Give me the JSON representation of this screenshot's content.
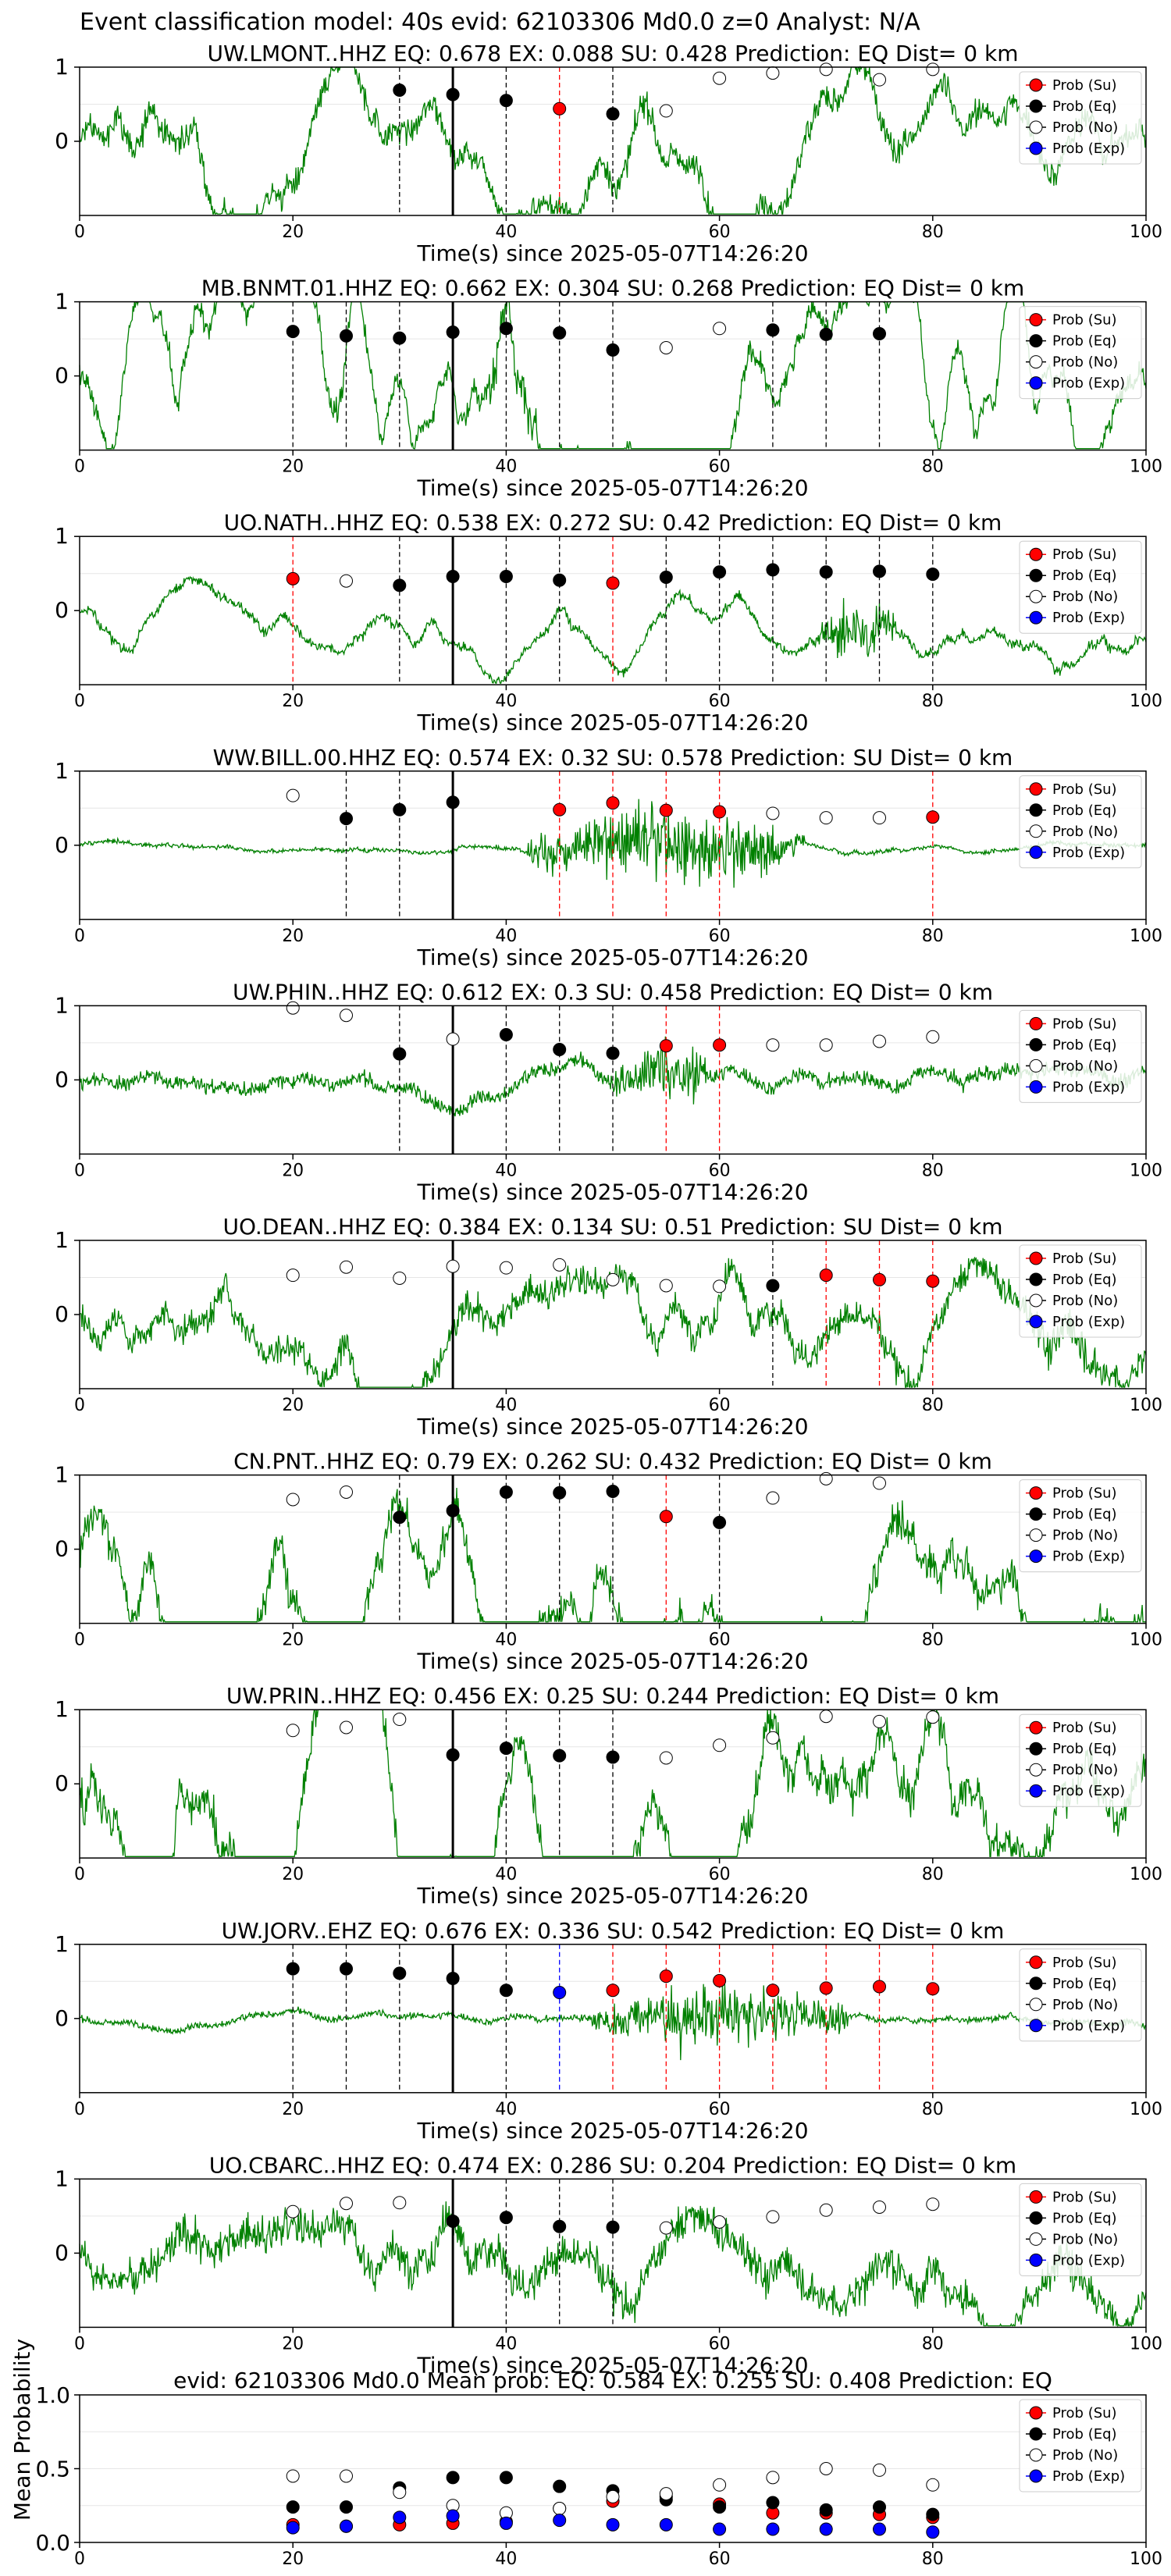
{
  "figure": {
    "title": "Event classification model: 40s evid: 62103306 Md0.0 z=0 Analyst: N/A"
  },
  "legend_entries": [
    {
      "label": "Prob (Su)",
      "color": "#ff0000"
    },
    {
      "label": "Prob (Eq)",
      "color": "#000000"
    },
    {
      "label": "Prob (No)",
      "color": "#ffffff"
    },
    {
      "label": "Prob (Exp)",
      "color": "#0000ff"
    }
  ],
  "colors": {
    "waveform": "#008000",
    "su": "#ff0000",
    "eq": "#000000",
    "no": "#ffffff",
    "exp": "#0000ff"
  },
  "chart_data": [
    {
      "type": "line",
      "title": "UW.LMONT..HHZ   EQ: 0.678  EX: 0.088  SU: 0.428   Prediction: EQ    Dist= 0 km",
      "xlabel": "Time(s) since 2025-05-07T14:26:20",
      "xlim": [
        0,
        100
      ],
      "ylim": [
        -1,
        1
      ],
      "xticks": [
        "0",
        "20",
        "40",
        "60",
        "80",
        "100"
      ],
      "yticks": [
        "0",
        "1"
      ],
      "arrival_line": 35,
      "waveform": {
        "amp": 0.32,
        "burst": null,
        "lowfreq": 0.2
      },
      "markers": [
        {
          "x": 30,
          "y": 0.69,
          "class": "eq"
        },
        {
          "x": 35,
          "y": 0.63,
          "class": "eq"
        },
        {
          "x": 40,
          "y": 0.55,
          "class": "eq"
        },
        {
          "x": 45,
          "y": 0.44,
          "class": "su"
        },
        {
          "x": 50,
          "y": 0.37,
          "class": "eq"
        },
        {
          "x": 55,
          "y": 0.41,
          "class": "no"
        },
        {
          "x": 60,
          "y": 0.85,
          "class": "no"
        },
        {
          "x": 65,
          "y": 0.92,
          "class": "no"
        },
        {
          "x": 70,
          "y": 0.97,
          "class": "no"
        },
        {
          "x": 75,
          "y": 0.83,
          "class": "no"
        },
        {
          "x": 80,
          "y": 0.97,
          "class": "no"
        }
      ]
    },
    {
      "type": "line",
      "title": "MB.BNMT.01.HHZ   EQ: 0.662  EX: 0.304  SU: 0.268   Prediction: EQ    Dist= 0 km",
      "xlabel": "Time(s) since 2025-05-07T14:26:20",
      "xlim": [
        0,
        100
      ],
      "ylim": [
        -1,
        1
      ],
      "xticks": [
        "0",
        "20",
        "40",
        "60",
        "80",
        "100"
      ],
      "yticks": [
        "0",
        "1"
      ],
      "arrival_line": 35,
      "waveform": {
        "amp": 0.25,
        "burst": [
          37,
          46,
          0.65
        ],
        "lowfreq": 0.5
      },
      "markers": [
        {
          "x": 20,
          "y": 0.6,
          "class": "eq"
        },
        {
          "x": 25,
          "y": 0.54,
          "class": "eq"
        },
        {
          "x": 30,
          "y": 0.51,
          "class": "eq"
        },
        {
          "x": 35,
          "y": 0.59,
          "class": "eq"
        },
        {
          "x": 40,
          "y": 0.64,
          "class": "eq"
        },
        {
          "x": 45,
          "y": 0.58,
          "class": "eq"
        },
        {
          "x": 50,
          "y": 0.35,
          "class": "eq"
        },
        {
          "x": 55,
          "y": 0.38,
          "class": "no"
        },
        {
          "x": 60,
          "y": 0.64,
          "class": "no"
        },
        {
          "x": 65,
          "y": 0.62,
          "class": "eq"
        },
        {
          "x": 70,
          "y": 0.56,
          "class": "eq"
        },
        {
          "x": 75,
          "y": 0.57,
          "class": "eq"
        }
      ]
    },
    {
      "type": "line",
      "title": "UO.NATH..HHZ   EQ: 0.538  EX: 0.272  SU: 0.42   Prediction: EQ    Dist= 0 km",
      "xlabel": "Time(s) since 2025-05-07T14:26:20",
      "xlim": [
        0,
        100
      ],
      "ylim": [
        -1,
        1
      ],
      "xticks": [
        "0",
        "20",
        "40",
        "60",
        "80",
        "100"
      ],
      "yticks": [
        "0",
        "1"
      ],
      "arrival_line": 35,
      "waveform": {
        "amp": 0.12,
        "burst": [
          69,
          77,
          0.7
        ],
        "lowfreq": 0.12
      },
      "markers": [
        {
          "x": 20,
          "y": 0.43,
          "class": "su"
        },
        {
          "x": 25,
          "y": 0.4,
          "class": "no"
        },
        {
          "x": 30,
          "y": 0.34,
          "class": "eq"
        },
        {
          "x": 35,
          "y": 0.46,
          "class": "eq"
        },
        {
          "x": 40,
          "y": 0.46,
          "class": "eq"
        },
        {
          "x": 45,
          "y": 0.41,
          "class": "eq"
        },
        {
          "x": 50,
          "y": 0.37,
          "class": "su"
        },
        {
          "x": 55,
          "y": 0.45,
          "class": "eq"
        },
        {
          "x": 60,
          "y": 0.52,
          "class": "eq"
        },
        {
          "x": 65,
          "y": 0.55,
          "class": "eq"
        },
        {
          "x": 70,
          "y": 0.52,
          "class": "eq"
        },
        {
          "x": 75,
          "y": 0.53,
          "class": "eq"
        },
        {
          "x": 80,
          "y": 0.49,
          "class": "eq"
        }
      ]
    },
    {
      "type": "line",
      "title": "WW.BILL.00.HHZ   EQ: 0.574  EX: 0.32  SU: 0.578   Prediction: SU    Dist= 0 km",
      "xlabel": "Time(s) since 2025-05-07T14:26:20",
      "xlim": [
        0,
        100
      ],
      "ylim": [
        -1,
        1
      ],
      "xticks": [
        "0",
        "20",
        "40",
        "60",
        "80",
        "100"
      ],
      "yticks": [
        "0",
        "1"
      ],
      "arrival_line": 35,
      "waveform": {
        "amp": 0.05,
        "burst": [
          42,
          68,
          0.85
        ],
        "lowfreq": 0.02
      },
      "markers": [
        {
          "x": 20,
          "y": 0.67,
          "class": "no"
        },
        {
          "x": 25,
          "y": 0.36,
          "class": "eq"
        },
        {
          "x": 30,
          "y": 0.48,
          "class": "eq"
        },
        {
          "x": 35,
          "y": 0.58,
          "class": "eq"
        },
        {
          "x": 45,
          "y": 0.48,
          "class": "su"
        },
        {
          "x": 50,
          "y": 0.57,
          "class": "su"
        },
        {
          "x": 55,
          "y": 0.47,
          "class": "su"
        },
        {
          "x": 60,
          "y": 0.45,
          "class": "su"
        },
        {
          "x": 65,
          "y": 0.43,
          "class": "no"
        },
        {
          "x": 70,
          "y": 0.37,
          "class": "no"
        },
        {
          "x": 75,
          "y": 0.37,
          "class": "no"
        },
        {
          "x": 80,
          "y": 0.38,
          "class": "su"
        }
      ]
    },
    {
      "type": "line",
      "title": "UW.PHIN..HHZ   EQ: 0.612  EX: 0.3  SU: 0.458   Prediction: EQ    Dist= 0 km",
      "xlabel": "Time(s) since 2025-05-07T14:26:20",
      "xlim": [
        0,
        100
      ],
      "ylim": [
        -1,
        1
      ],
      "xticks": [
        "0",
        "20",
        "40",
        "60",
        "80",
        "100"
      ],
      "yticks": [
        "0",
        "1"
      ],
      "arrival_line": 35,
      "waveform": {
        "amp": 0.18,
        "burst": [
          50,
          60,
          0.75
        ],
        "lowfreq": 0.05
      },
      "markers": [
        {
          "x": 20,
          "y": 0.97,
          "class": "no"
        },
        {
          "x": 25,
          "y": 0.87,
          "class": "no"
        },
        {
          "x": 30,
          "y": 0.35,
          "class": "eq"
        },
        {
          "x": 35,
          "y": 0.55,
          "class": "no"
        },
        {
          "x": 40,
          "y": 0.61,
          "class": "eq"
        },
        {
          "x": 45,
          "y": 0.41,
          "class": "eq"
        },
        {
          "x": 50,
          "y": 0.36,
          "class": "eq"
        },
        {
          "x": 55,
          "y": 0.46,
          "class": "su"
        },
        {
          "x": 60,
          "y": 0.47,
          "class": "su"
        },
        {
          "x": 65,
          "y": 0.47,
          "class": "no"
        },
        {
          "x": 70,
          "y": 0.47,
          "class": "no"
        },
        {
          "x": 75,
          "y": 0.52,
          "class": "no"
        },
        {
          "x": 80,
          "y": 0.58,
          "class": "no"
        }
      ]
    },
    {
      "type": "line",
      "title": "UO.DEAN..HHZ   EQ: 0.384  EX: 0.134  SU: 0.51   Prediction: SU    Dist= 0 km",
      "xlabel": "Time(s) since 2025-05-07T14:26:20",
      "xlim": [
        0,
        100
      ],
      "ylim": [
        -1,
        1
      ],
      "xticks": [
        "0",
        "20",
        "40",
        "60",
        "80",
        "100"
      ],
      "yticks": [
        "0",
        "1"
      ],
      "arrival_line": 35,
      "waveform": {
        "amp": 0.35,
        "burst": [
          86,
          100,
          0.5
        ],
        "lowfreq": 0.2
      },
      "markers": [
        {
          "x": 20,
          "y": 0.53,
          "class": "no"
        },
        {
          "x": 25,
          "y": 0.64,
          "class": "no"
        },
        {
          "x": 30,
          "y": 0.49,
          "class": "no"
        },
        {
          "x": 35,
          "y": 0.65,
          "class": "no"
        },
        {
          "x": 40,
          "y": 0.63,
          "class": "no"
        },
        {
          "x": 45,
          "y": 0.67,
          "class": "no"
        },
        {
          "x": 50,
          "y": 0.47,
          "class": "no"
        },
        {
          "x": 55,
          "y": 0.39,
          "class": "no"
        },
        {
          "x": 60,
          "y": 0.38,
          "class": "no"
        },
        {
          "x": 65,
          "y": 0.39,
          "class": "eq"
        },
        {
          "x": 70,
          "y": 0.53,
          "class": "su"
        },
        {
          "x": 75,
          "y": 0.47,
          "class": "su"
        },
        {
          "x": 80,
          "y": 0.45,
          "class": "su"
        }
      ]
    },
    {
      "type": "line",
      "title": "CN.PNT..HHZ   EQ: 0.79  EX: 0.262  SU: 0.432   Prediction: EQ    Dist= 0 km",
      "xlabel": "Time(s) since 2025-05-07T14:26:20",
      "xlim": [
        0,
        100
      ],
      "ylim": [
        -1,
        1
      ],
      "xticks": [
        "0",
        "20",
        "40",
        "60",
        "80",
        "100"
      ],
      "yticks": [
        "0",
        "1"
      ],
      "arrival_line": 35,
      "waveform": {
        "amp": 0.4,
        "burst": null,
        "lowfreq": 0.35
      },
      "markers": [
        {
          "x": 20,
          "y": 0.67,
          "class": "no"
        },
        {
          "x": 25,
          "y": 0.77,
          "class": "no"
        },
        {
          "x": 30,
          "y": 0.43,
          "class": "eq"
        },
        {
          "x": 35,
          "y": 0.52,
          "class": "eq"
        },
        {
          "x": 40,
          "y": 0.77,
          "class": "eq"
        },
        {
          "x": 45,
          "y": 0.76,
          "class": "eq"
        },
        {
          "x": 50,
          "y": 0.78,
          "class": "eq"
        },
        {
          "x": 55,
          "y": 0.44,
          "class": "su"
        },
        {
          "x": 60,
          "y": 0.36,
          "class": "eq"
        },
        {
          "x": 65,
          "y": 0.69,
          "class": "no"
        },
        {
          "x": 70,
          "y": 0.95,
          "class": "no"
        },
        {
          "x": 75,
          "y": 0.89,
          "class": "no"
        }
      ]
    },
    {
      "type": "line",
      "title": "UW.PRIN..HHZ   EQ: 0.456  EX: 0.25  SU: 0.244   Prediction: EQ    Dist= 0 km",
      "xlabel": "Time(s) since 2025-05-07T14:26:20",
      "xlim": [
        0,
        100
      ],
      "ylim": [
        -1,
        1
      ],
      "xticks": [
        "0",
        "20",
        "40",
        "60",
        "80",
        "100"
      ],
      "yticks": [
        "0",
        "1"
      ],
      "arrival_line": 35,
      "waveform": {
        "amp": 0.45,
        "burst": null,
        "lowfreq": 0.45
      },
      "markers": [
        {
          "x": 20,
          "y": 0.72,
          "class": "no"
        },
        {
          "x": 25,
          "y": 0.76,
          "class": "no"
        },
        {
          "x": 30,
          "y": 0.87,
          "class": "no"
        },
        {
          "x": 35,
          "y": 0.39,
          "class": "eq"
        },
        {
          "x": 40,
          "y": 0.48,
          "class": "eq"
        },
        {
          "x": 45,
          "y": 0.38,
          "class": "eq"
        },
        {
          "x": 50,
          "y": 0.36,
          "class": "eq"
        },
        {
          "x": 55,
          "y": 0.35,
          "class": "no"
        },
        {
          "x": 60,
          "y": 0.52,
          "class": "no"
        },
        {
          "x": 65,
          "y": 0.62,
          "class": "no"
        },
        {
          "x": 70,
          "y": 0.91,
          "class": "no"
        },
        {
          "x": 75,
          "y": 0.84,
          "class": "no"
        },
        {
          "x": 80,
          "y": 0.9,
          "class": "no"
        }
      ]
    },
    {
      "type": "line",
      "title": "UW.JORV..EHZ   EQ: 0.676  EX: 0.336  SU: 0.542   Prediction: EQ    Dist= 0 km",
      "xlabel": "Time(s) since 2025-05-07T14:26:20",
      "xlim": [
        0,
        100
      ],
      "ylim": [
        -1,
        1
      ],
      "xticks": [
        "0",
        "20",
        "40",
        "60",
        "80",
        "100"
      ],
      "yticks": [
        "0",
        "1"
      ],
      "arrival_line": 35,
      "waveform": {
        "amp": 0.08,
        "burst": [
          48,
          72,
          0.7
        ],
        "lowfreq": 0.02
      },
      "markers": [
        {
          "x": 20,
          "y": 0.67,
          "class": "eq"
        },
        {
          "x": 25,
          "y": 0.67,
          "class": "eq"
        },
        {
          "x": 30,
          "y": 0.61,
          "class": "eq"
        },
        {
          "x": 35,
          "y": 0.54,
          "class": "eq"
        },
        {
          "x": 40,
          "y": 0.38,
          "class": "eq"
        },
        {
          "x": 45,
          "y": 0.35,
          "class": "exp"
        },
        {
          "x": 50,
          "y": 0.38,
          "class": "su"
        },
        {
          "x": 55,
          "y": 0.57,
          "class": "su"
        },
        {
          "x": 60,
          "y": 0.51,
          "class": "su"
        },
        {
          "x": 65,
          "y": 0.38,
          "class": "su"
        },
        {
          "x": 70,
          "y": 0.41,
          "class": "su"
        },
        {
          "x": 75,
          "y": 0.43,
          "class": "su"
        },
        {
          "x": 80,
          "y": 0.4,
          "class": "su"
        }
      ]
    },
    {
      "type": "line",
      "title": "UO.CBARC..HHZ   EQ: 0.474  EX: 0.286  SU: 0.204   Prediction: EQ    Dist= 0 km",
      "xlabel": "Time(s) since 2025-05-07T14:26:20",
      "xlim": [
        0,
        100
      ],
      "ylim": [
        -1,
        1
      ],
      "xticks": [
        "0",
        "20",
        "40",
        "60",
        "80",
        "100"
      ],
      "yticks": [
        "0",
        "1"
      ],
      "arrival_line": 35,
      "waveform": {
        "amp": 0.45,
        "burst": null,
        "lowfreq": 0.15
      },
      "markers": [
        {
          "x": 20,
          "y": 0.56,
          "class": "no"
        },
        {
          "x": 25,
          "y": 0.67,
          "class": "no"
        },
        {
          "x": 30,
          "y": 0.68,
          "class": "no"
        },
        {
          "x": 35,
          "y": 0.43,
          "class": "eq"
        },
        {
          "x": 40,
          "y": 0.48,
          "class": "eq"
        },
        {
          "x": 45,
          "y": 0.36,
          "class": "eq"
        },
        {
          "x": 50,
          "y": 0.35,
          "class": "eq"
        },
        {
          "x": 55,
          "y": 0.34,
          "class": "no"
        },
        {
          "x": 60,
          "y": 0.42,
          "class": "no"
        },
        {
          "x": 65,
          "y": 0.49,
          "class": "no"
        },
        {
          "x": 70,
          "y": 0.58,
          "class": "no"
        },
        {
          "x": 75,
          "y": 0.62,
          "class": "no"
        },
        {
          "x": 80,
          "y": 0.66,
          "class": "no"
        }
      ]
    },
    {
      "type": "scatter",
      "title": "evid: 62103306  Md0.0   Mean prob:   EQ: 0.584  EX: 0.255  SU: 0.408   Prediction: EQ",
      "ylabel": "Mean Probability",
      "xlim": [
        0,
        100
      ],
      "ylim": [
        0,
        1
      ],
      "xticks": [
        "0",
        "20",
        "40",
        "60",
        "80",
        "100"
      ],
      "yticks": [
        "0.0",
        "0.5",
        "1.0"
      ],
      "x": [
        20,
        25,
        30,
        35,
        40,
        45,
        50,
        55,
        60,
        65,
        70,
        75,
        80
      ],
      "series": [
        {
          "name": "Prob (Su)",
          "class": "su",
          "values": [
            0.12,
            0.11,
            0.12,
            0.13,
            0.14,
            0.23,
            0.28,
            0.31,
            0.26,
            0.2,
            0.2,
            0.19,
            0.17
          ]
        },
        {
          "name": "Prob (Eq)",
          "class": "eq",
          "values": [
            0.24,
            0.24,
            0.37,
            0.44,
            0.44,
            0.38,
            0.35,
            0.29,
            0.24,
            0.27,
            0.22,
            0.24,
            0.19
          ]
        },
        {
          "name": "Prob (No)",
          "class": "no",
          "values": [
            0.45,
            0.45,
            0.34,
            0.25,
            0.2,
            0.23,
            0.31,
            0.33,
            0.39,
            0.44,
            0.5,
            0.49,
            0.39
          ]
        },
        {
          "name": "Prob (Exp)",
          "class": "exp",
          "values": [
            0.1,
            0.11,
            0.17,
            0.18,
            0.13,
            0.15,
            0.12,
            0.12,
            0.09,
            0.09,
            0.09,
            0.09,
            0.07
          ]
        }
      ]
    }
  ]
}
